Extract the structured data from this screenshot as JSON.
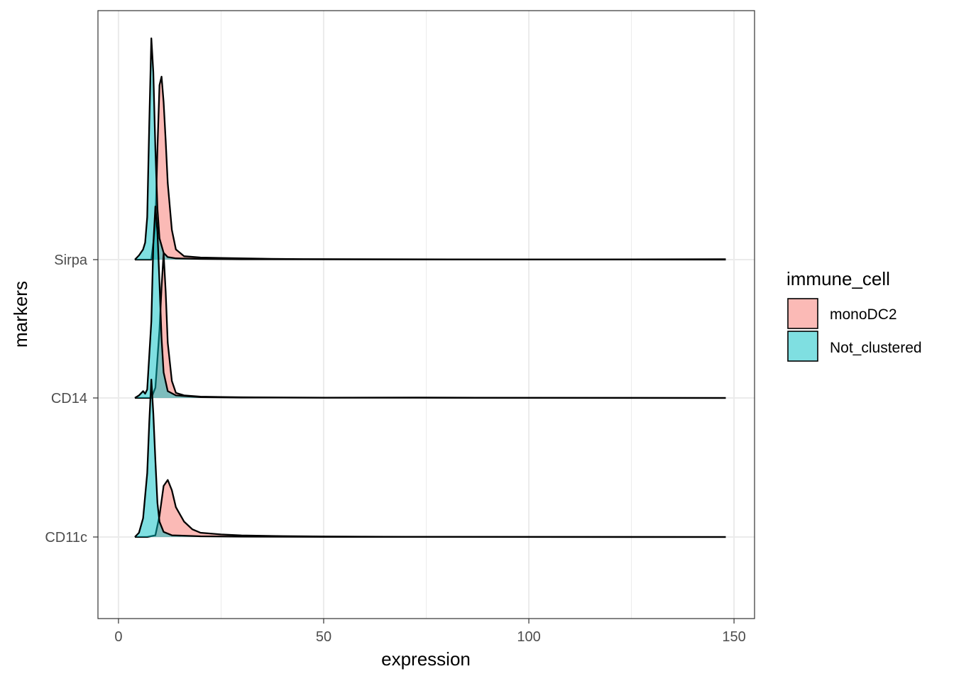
{
  "chart_data": {
    "type": "ridgeline-density",
    "xlabel": "expression",
    "ylabel": "markers",
    "xlim": [
      -5,
      155
    ],
    "x_ticks": [
      0,
      50,
      100,
      150
    ],
    "x_tick_labels": [
      "0",
      "50",
      "100",
      "150"
    ],
    "categories": [
      "CD11c",
      "CD14",
      "Sirpa"
    ],
    "grid": true,
    "legend": {
      "title": "immune_cell",
      "placement": "right",
      "entries": [
        "monoDC2",
        "Not_clustered"
      ]
    },
    "series": [
      {
        "name": "monoDC2",
        "color": "#F8766D",
        "ridges": {
          "CD11c": {
            "x": [
              4,
              7,
              9,
              10,
              11,
              12,
              13,
              14,
              16,
              18,
              20,
              25,
              30,
              40,
              50,
              60,
              70,
              100,
              148
            ],
            "density": [
              0,
              0,
              0.02,
              0.25,
              0.6,
              0.67,
              0.55,
              0.35,
              0.18,
              0.09,
              0.05,
              0.03,
              0.018,
              0.01,
              0.006,
              0.004,
              0.002,
              0.0005,
              0
            ]
          },
          "CD14": {
            "x": [
              4,
              8,
              9,
              10,
              10.5,
              11,
              11.5,
              12,
              13,
              14,
              16,
              20,
              25,
              30,
              40,
              50,
              73,
              100,
              148
            ],
            "density": [
              0,
              0,
              0.12,
              0.8,
              1.3,
              1.7,
              1.25,
              0.65,
              0.2,
              0.06,
              0.03,
              0.015,
              0.012,
              0.008,
              0.005,
              0.003,
              0.005,
              0.0005,
              0
            ]
          },
          "Sirpa": {
            "x": [
              4,
              8,
              9,
              9.5,
              10,
              10.5,
              11,
              11.5,
              12,
              13,
              14,
              16,
              20,
              25,
              30,
              36,
              45,
              100,
              148
            ],
            "density": [
              0,
              0,
              0.4,
              1.3,
              2.05,
              2.15,
              1.85,
              1.4,
              0.9,
              0.35,
              0.12,
              0.04,
              0.025,
              0.02,
              0.015,
              0.01,
              0.006,
              0.0005,
              0.005
            ]
          }
        }
      },
      {
        "name": "Not_clustered",
        "color": "#00BFC4",
        "ridges": {
          "CD11c": {
            "x": [
              4,
              5,
              6,
              7,
              7.5,
              8,
              8.5,
              9,
              9.5,
              10,
              11,
              13,
              20,
              30,
              50,
              73,
              148
            ],
            "density": [
              0,
              0.05,
              0.22,
              0.75,
              1.35,
              1.85,
              1.45,
              0.9,
              0.4,
              0.18,
              0.06,
              0.02,
              0.008,
              0.004,
              0.002,
              0.001,
              0
            ]
          },
          "CD14": {
            "x": [
              4,
              5,
              6,
              6.5,
              7,
              8,
              8.5,
              9,
              9.5,
              10,
              10.5,
              11,
              12,
              14,
              20,
              30,
              148
            ],
            "density": [
              0,
              0.03,
              0.08,
              0.05,
              0.1,
              0.9,
              1.8,
              2.25,
              1.95,
              1.35,
              0.7,
              0.3,
              0.08,
              0.03,
              0.01,
              0.004,
              0
            ]
          },
          "Sirpa": {
            "x": [
              4,
              5,
              6,
              6.5,
              7,
              7.5,
              8,
              8.5,
              9,
              9.5,
              10,
              11,
              12,
              14,
              20,
              30,
              148
            ],
            "density": [
              0,
              0.05,
              0.12,
              0.2,
              0.5,
              1.6,
              2.6,
              2.2,
              1.3,
              0.6,
              0.25,
              0.08,
              0.03,
              0.015,
              0.008,
              0.004,
              0
            ]
          }
        }
      }
    ]
  }
}
